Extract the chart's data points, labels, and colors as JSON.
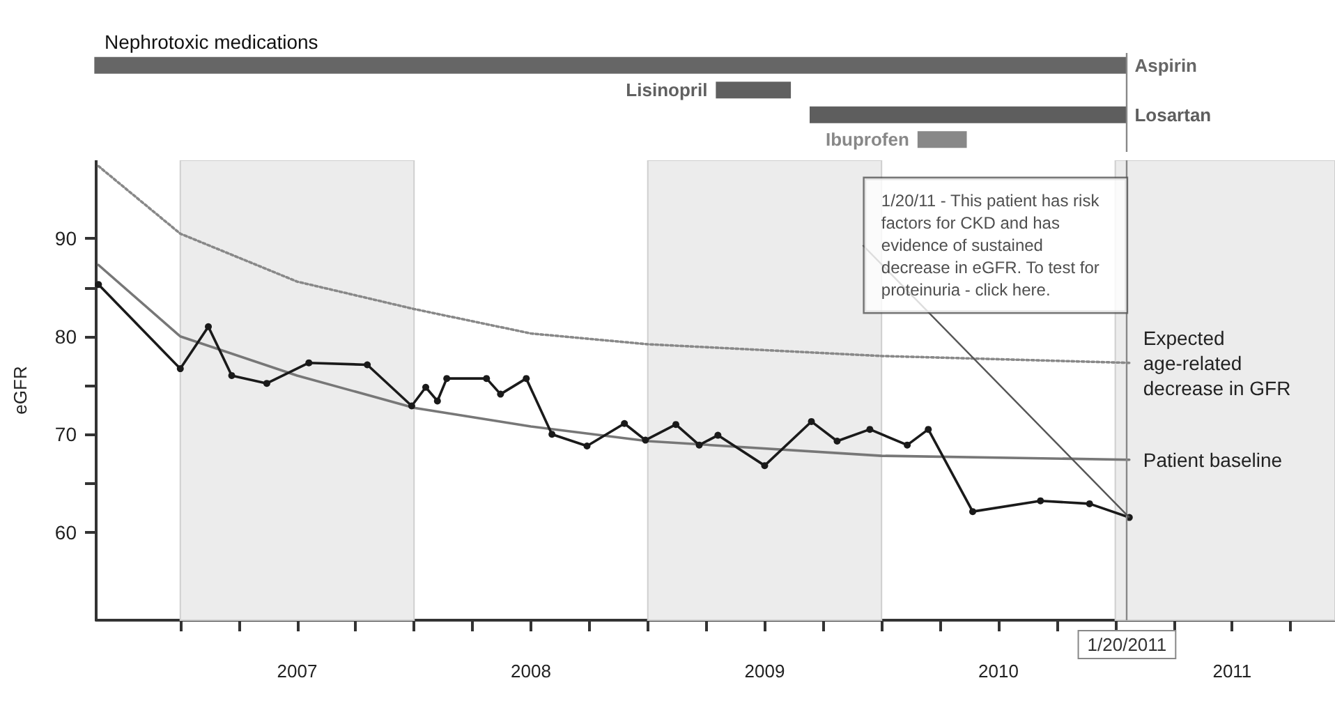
{
  "chart_data": [
    {
      "type": "bar",
      "orientation": "horizontal",
      "title": "Nephrotoxic medications",
      "categories": [
        "Aspirin",
        "Lisinopril",
        "Losartan",
        "Ibuprofen"
      ],
      "base": [
        2006.65,
        2009.3,
        2009.7,
        2010.16
      ],
      "values": [
        4.4,
        0.32,
        1.35,
        0.21
      ],
      "colors": [
        "#666666",
        "#606060",
        "#5e5e5e",
        "#888888"
      ],
      "xlim": [
        2006.64,
        2011.94
      ],
      "tick_labels": false,
      "legend": false,
      "grid": false,
      "ref_lines": [
        {
          "axis": "x",
          "value": 2011.05,
          "color": "#888888"
        }
      ]
    },
    {
      "type": "line",
      "ylabel": "eGFR",
      "series": [
        {
          "name": "Expected age-related decrease in GFR",
          "color": "#888888",
          "line_style": "dotted",
          "marker": "none",
          "x": [
            2006.65,
            2007.0,
            2007.5,
            2008.0,
            2008.5,
            2009.0,
            2010.0,
            2011.06
          ],
          "values": [
            97.4,
            90.5,
            85.6,
            82.8,
            80.3,
            79.2,
            78.0,
            77.3
          ]
        },
        {
          "name": "Patient baseline",
          "color": "#777777",
          "line_style": "solid",
          "marker": "none",
          "x": [
            2006.65,
            2007.0,
            2007.5,
            2008.0,
            2008.5,
            2009.0,
            2010.0,
            2011.06
          ],
          "values": [
            87.3,
            80.0,
            76.0,
            72.7,
            70.8,
            69.3,
            67.8,
            67.4
          ]
        },
        {
          "color": "#1a1a1a",
          "line_style": "solid",
          "marker": "circle",
          "x": [
            2006.65,
            2007.0,
            2007.12,
            2007.22,
            2007.37,
            2007.55,
            2007.8,
            2007.99,
            2008.05,
            2008.1,
            2008.14,
            2008.31,
            2008.37,
            2008.48,
            2008.59,
            2008.74,
            2008.9,
            2008.99,
            2009.12,
            2009.22,
            2009.3,
            2009.5,
            2009.7,
            2009.81,
            2009.95,
            2010.11,
            2010.2,
            2010.39,
            2010.68,
            2010.89,
            2011.06
          ],
          "values": [
            85.3,
            76.7,
            81.0,
            76.0,
            75.2,
            77.3,
            77.1,
            72.9,
            74.8,
            73.4,
            75.7,
            75.7,
            74.1,
            75.7,
            70.0,
            68.8,
            71.1,
            69.4,
            71.0,
            68.9,
            69.9,
            66.8,
            71.3,
            69.3,
            70.5,
            68.9,
            70.5,
            62.1,
            63.2,
            62.9,
            61.5
          ]
        }
      ],
      "xlim": [
        2006.64,
        2011.94
      ],
      "xticks": [
        {
          "value": 2007.0,
          "label": null
        },
        {
          "value": 2007.25,
          "label": null
        },
        {
          "value": 2007.5,
          "label": "2007"
        },
        {
          "value": 2007.75,
          "label": null
        },
        {
          "value": 2008.0,
          "label": null
        },
        {
          "value": 2008.25,
          "label": null
        },
        {
          "value": 2008.5,
          "label": "2008"
        },
        {
          "value": 2008.75,
          "label": null
        },
        {
          "value": 2009.0,
          "label": null
        },
        {
          "value": 2009.25,
          "label": null
        },
        {
          "value": 2009.5,
          "label": "2009"
        },
        {
          "value": 2009.75,
          "label": null
        },
        {
          "value": 2010.0,
          "label": null
        },
        {
          "value": 2010.25,
          "label": null
        },
        {
          "value": 2010.5,
          "label": "2010"
        },
        {
          "value": 2010.75,
          "label": null
        },
        {
          "value": 2011.0,
          "label": null
        },
        {
          "value": 2011.25,
          "label": null
        },
        {
          "value": 2011.5,
          "label": "2011"
        },
        {
          "value": 2011.75,
          "label": null
        }
      ],
      "ylim": [
        51,
        98
      ],
      "yticks": [
        60,
        {
          "value": 65,
          "label": null
        },
        70,
        {
          "value": 75,
          "label": null
        },
        80,
        {
          "value": 85,
          "label": null
        },
        90
      ],
      "grid": false,
      "legend": false,
      "bands": [
        {
          "axis": "x",
          "from": 2007,
          "to": 2008,
          "color": "#ececec"
        },
        {
          "axis": "x",
          "from": 2009,
          "to": 2010,
          "color": "#ececec"
        },
        {
          "axis": "x",
          "from": 2011,
          "to": 2011.94,
          "color": "#ececec"
        }
      ],
      "ref_lines": [
        {
          "axis": "x",
          "value": 2011.05,
          "label": "1/20/2011",
          "color": "#888888"
        }
      ],
      "annotations": [
        {
          "text": "1/20/11 - This patient has risk factors for CKD and has evidence of sustained decrease in eGFR. To test for proteinuria - click here.",
          "x": 2011.06,
          "y": 61.5
        }
      ]
    }
  ]
}
